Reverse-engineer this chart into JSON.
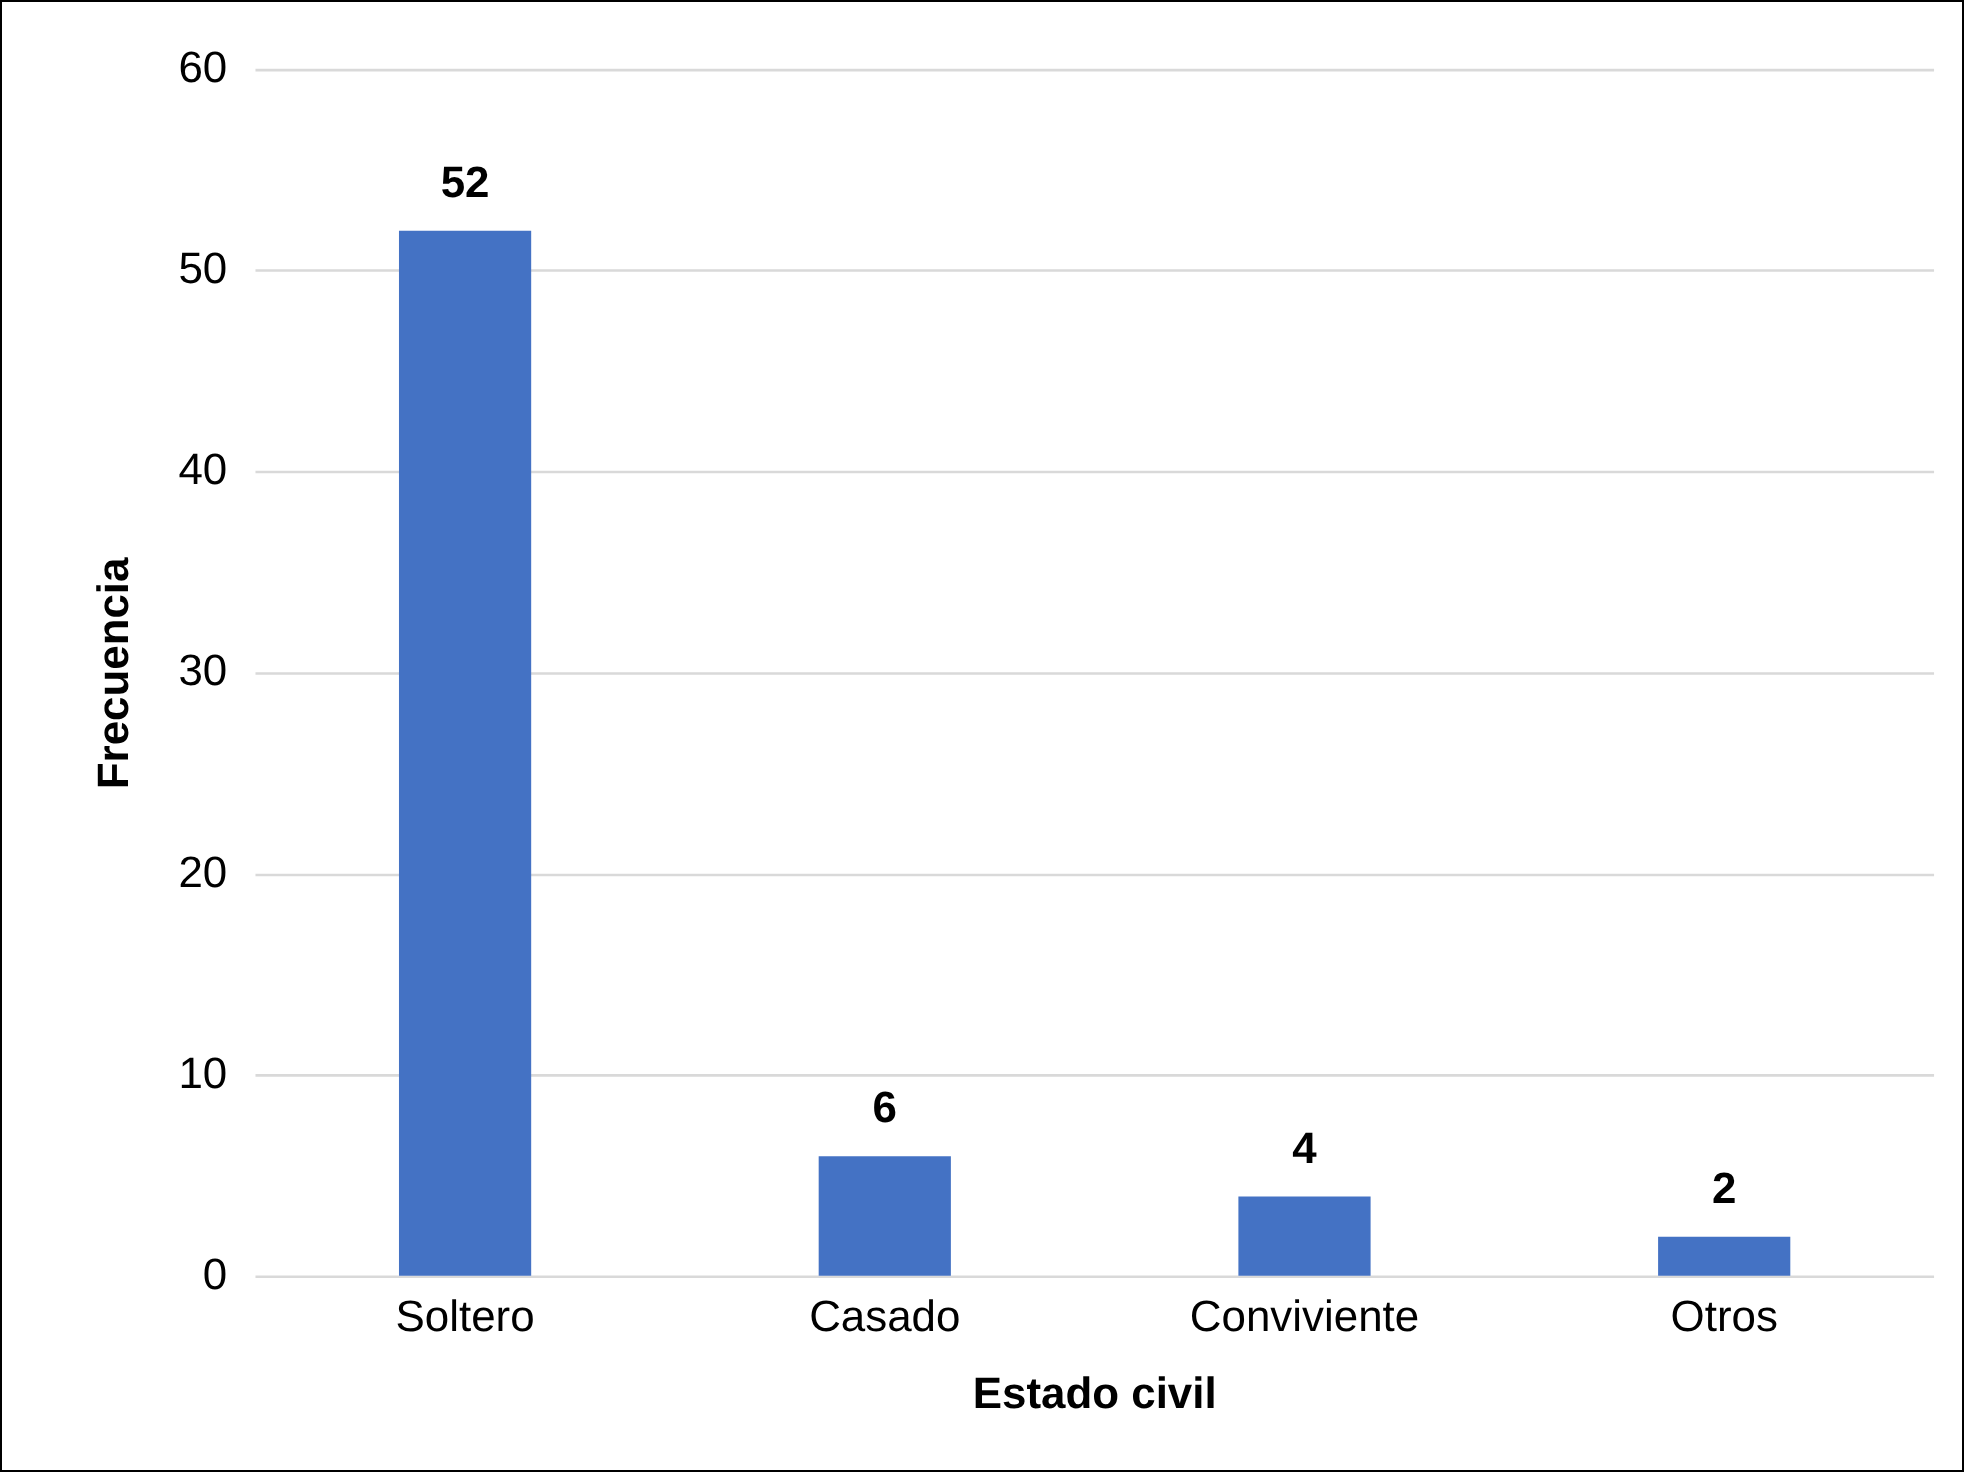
{
  "chart_data": {
    "type": "bar",
    "xlabel": "Estado civil",
    "ylabel": "Frecuencia",
    "categories": [
      "Soltero",
      "Casado",
      "Conviviente",
      "Otros"
    ],
    "values": [
      52,
      6,
      4,
      2
    ],
    "color": "#4472c4",
    "ylim": [
      0,
      60
    ],
    "yticks": [
      0,
      10,
      20,
      30,
      40,
      50,
      60
    ],
    "grid": "y",
    "legend": false,
    "data_labels": true
  }
}
